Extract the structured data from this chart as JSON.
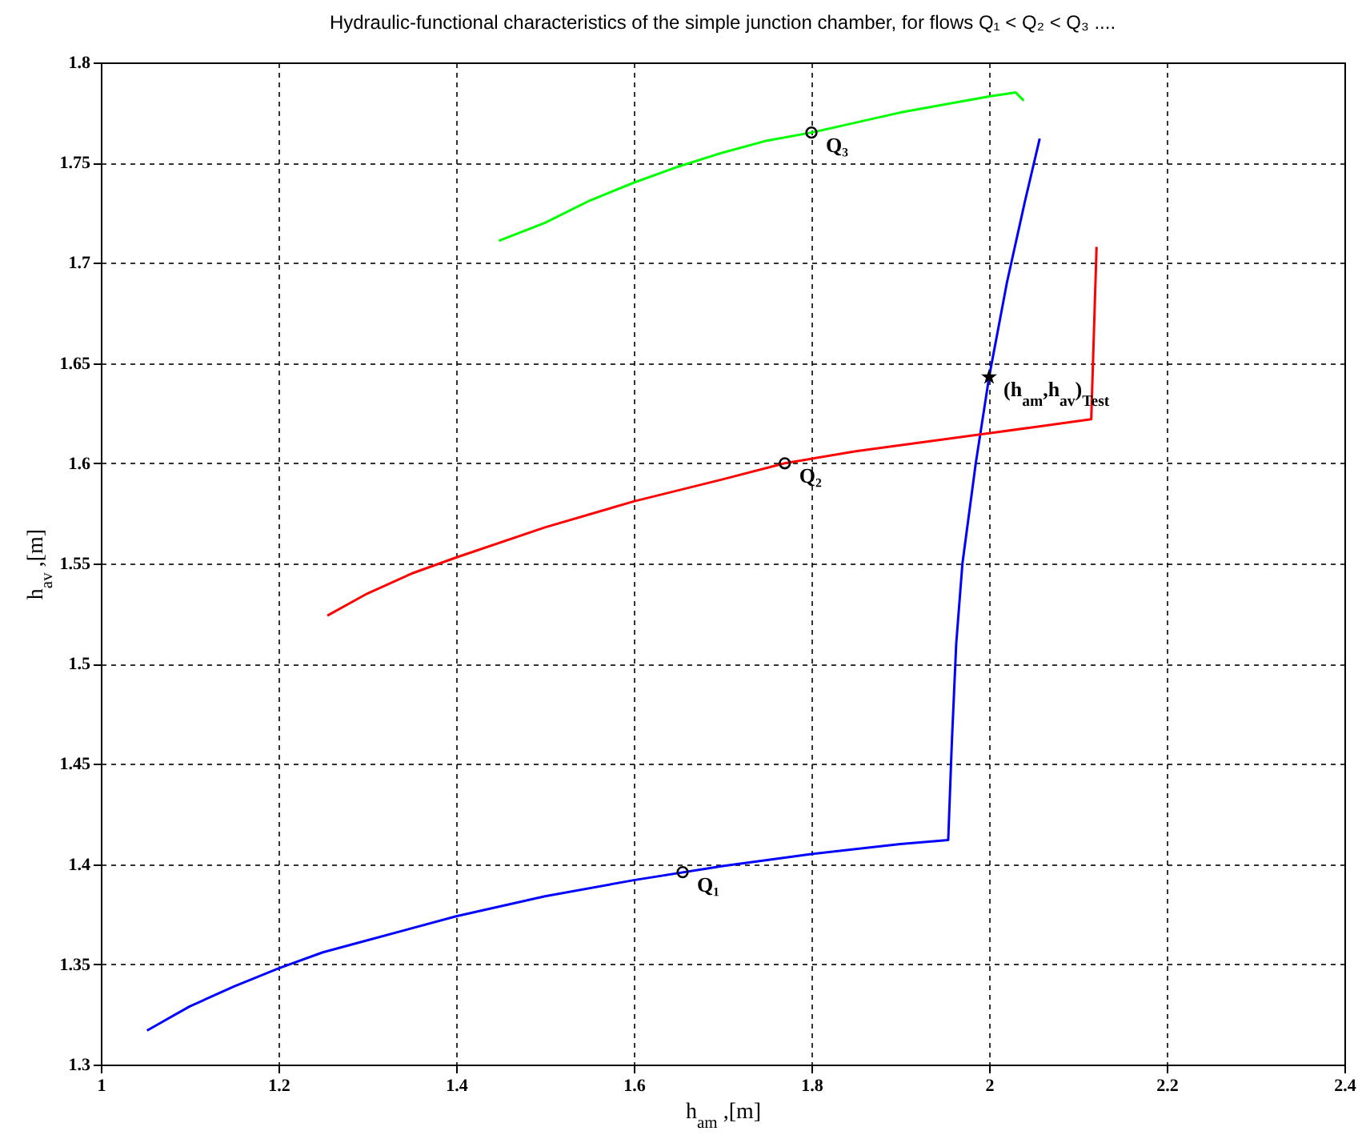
{
  "chart_data": {
    "type": "line",
    "title": "Hydraulic-functional characteristics of the  simple junction chamber, for flows  Q₁ < Q₂ < Q₃ ....",
    "xlabel": "h$_{am}$ ,[m]",
    "ylabel": "h$_{av}$ ,[m]",
    "xlim": [
      1,
      2.4
    ],
    "xticks": [
      1,
      1.2,
      1.4,
      1.6,
      1.8,
      2,
      2.2,
      2.4
    ],
    "ylim": [
      1.3,
      1.8
    ],
    "yticks": [
      1.3,
      1.35,
      1.4,
      1.45,
      1.5,
      1.55,
      1.6,
      1.65,
      1.7,
      1.75,
      1.8
    ],
    "grid": true,
    "line_style": "solid",
    "series": [
      {
        "color": "#0000ff",
        "x": [
          1.052,
          1.1,
          1.15,
          1.2,
          1.25,
          1.3,
          1.4,
          1.5,
          1.6,
          1.7,
          1.8,
          1.9,
          1.954,
          1.958,
          1.963,
          1.97,
          1.985,
          2.0,
          2.02,
          2.04,
          2.057
        ],
        "values": [
          1.317,
          1.329,
          1.339,
          1.348,
          1.356,
          1.362,
          1.374,
          1.384,
          1.392,
          1.399,
          1.405,
          1.41,
          1.412,
          1.46,
          1.51,
          1.55,
          1.6,
          1.643,
          1.69,
          1.73,
          1.762
        ]
      },
      {
        "color": "#ff0000",
        "x": [
          1.255,
          1.3,
          1.35,
          1.4,
          1.5,
          1.6,
          1.7,
          1.77,
          1.85,
          1.95,
          2.0,
          2.05,
          2.115,
          2.121
        ],
        "values": [
          1.524,
          1.535,
          1.545,
          1.553,
          1.568,
          1.581,
          1.592,
          1.6,
          1.606,
          1.612,
          1.615,
          1.618,
          1.622,
          1.708
        ]
      },
      {
        "color": "#00ff00",
        "x": [
          1.448,
          1.5,
          1.55,
          1.6,
          1.65,
          1.7,
          1.75,
          1.8,
          1.85,
          1.9,
          1.95,
          2.0,
          2.03,
          2.039
        ],
        "values": [
          1.711,
          1.72,
          1.731,
          1.74,
          1.748,
          1.755,
          1.761,
          1.765,
          1.77,
          1.775,
          1.779,
          1.783,
          1.785,
          1.781
        ]
      },
      {
        "type": "scatter",
        "color": "#000000",
        "marker": "circle",
        "x": [
          1.655,
          1.77,
          1.8
        ],
        "values": [
          1.396,
          1.6,
          1.765
        ]
      },
      {
        "type": "scatter",
        "color": "#000000",
        "marker": "star",
        "x": [
          2.0
        ],
        "values": [
          1.643
        ]
      }
    ],
    "annotations": [
      {
        "text": "Q₁",
        "x": 1.655,
        "y": 1.396
      },
      {
        "text": "Q₂",
        "x": 1.77,
        "y": 1.6
      },
      {
        "text": "Q₃",
        "x": 1.8,
        "y": 1.765
      },
      {
        "text": "(h$_{am}$,h$_{av}$)$_{Test}$",
        "x": 2.0,
        "y": 1.643
      }
    ]
  }
}
